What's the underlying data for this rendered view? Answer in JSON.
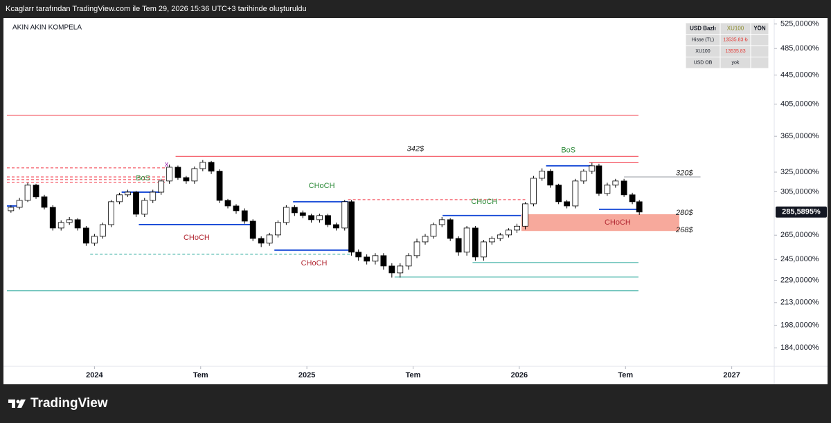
{
  "header": {
    "text": "Kcaglarr tarafından TradingView.com ile Tem 29, 2026 15:36 UTC+3 tarihinde oluşturuldu"
  },
  "chart_data": {
    "type": "candlestick",
    "title": "AKIN AKIN KOMPELA",
    "x": [
      2023.607,
      2023.647,
      2023.686,
      2023.725,
      2023.764,
      2023.804,
      2023.843,
      2023.882,
      2023.921,
      2023.961,
      2024.0,
      2024.039,
      2024.079,
      2024.118,
      2024.157,
      2024.196,
      2024.236,
      2024.275,
      2024.314,
      2024.353,
      2024.393,
      2024.432,
      2024.471,
      2024.51,
      2024.55,
      2024.589,
      2024.628,
      2024.667,
      2024.707,
      2024.746,
      2024.785,
      2024.824,
      2024.864,
      2024.903,
      2024.942,
      2024.981,
      2025.021,
      2025.06,
      2025.099,
      2025.138,
      2025.178,
      2025.21,
      2025.243,
      2025.282,
      2025.322,
      2025.361,
      2025.4,
      2025.439,
      2025.479,
      2025.518,
      2025.557,
      2025.596,
      2025.636,
      2025.675,
      2025.714,
      2025.753,
      2025.793,
      2025.832,
      2025.871,
      2025.91,
      2025.95,
      2025.989,
      2026.028,
      2026.067,
      2026.107,
      2026.146,
      2026.185,
      2026.224,
      2026.264,
      2026.303,
      2026.342,
      2026.375,
      2026.414,
      2026.453,
      2026.493,
      2026.532,
      2026.565
    ],
    "open": [
      286.8,
      290.0,
      296.6,
      311.6,
      300.0,
      290.0,
      271.2,
      276.1,
      278.6,
      271.2,
      258.2,
      264.0,
      274.2,
      295.3,
      302.0,
      304.6,
      283.6,
      296.6,
      304.6,
      315.8,
      330.2,
      319.3,
      315.8,
      328.7,
      335.5,
      326.0,
      296.6,
      291.3,
      286.8,
      277.3,
      262.2,
      258.2,
      265.2,
      276.1,
      290.0,
      284.9,
      282.4,
      278.6,
      282.4,
      274.2,
      271.2,
      295.3,
      250.8,
      246.9,
      243.6,
      248.0,
      239.8,
      234.5,
      239.8,
      248.0,
      259.3,
      264.0,
      274.2,
      278.6,
      262.2,
      250.8,
      271.2,
      246.9,
      259.3,
      262.2,
      265.2,
      269.4,
      272.8,
      293.3,
      318.6,
      326.0,
      311.6,
      295.3,
      291.3,
      315.8,
      326.0,
      331.7,
      303.3,
      311.6,
      315.8,
      302.0,
      295.3
    ],
    "high": [
      292,
      299,
      314,
      313,
      302,
      292,
      278,
      281,
      280,
      273,
      266,
      276,
      297,
      304,
      307,
      306,
      299,
      307,
      318,
      333,
      332,
      321,
      331,
      338,
      337,
      328,
      298,
      293,
      289,
      279,
      264,
      267,
      278,
      292,
      292,
      287,
      284,
      284,
      284,
      276,
      297,
      297,
      253,
      249,
      250,
      250,
      242,
      242,
      250,
      262,
      266,
      276,
      281,
      280,
      264,
      273,
      273,
      261,
      264,
      267,
      271,
      275,
      295,
      321,
      329,
      328,
      313,
      297,
      318,
      328,
      335,
      334,
      314,
      318,
      318,
      304,
      297
    ],
    "low": [
      285,
      288,
      295,
      298,
      288,
      269,
      269,
      274,
      269,
      256,
      256,
      262,
      272,
      293,
      300,
      281,
      281,
      294,
      302,
      313,
      317,
      313,
      313,
      326,
      323,
      294,
      289,
      284,
      275,
      260,
      255,
      256,
      263,
      274,
      282,
      280,
      276,
      276,
      272,
      269,
      269,
      248,
      244,
      241,
      241,
      237,
      231,
      231,
      237,
      246,
      257,
      262,
      272,
      260,
      248,
      248,
      244,
      244,
      257,
      260,
      263,
      267,
      270,
      291,
      316,
      309,
      293,
      289,
      289,
      313,
      323,
      301,
      301,
      309,
      300,
      293,
      283
    ],
    "close": [
      290.0,
      296.6,
      311.6,
      300.0,
      290.0,
      271.2,
      276.1,
      278.6,
      271.2,
      258.2,
      264.0,
      274.2,
      295.3,
      302.0,
      304.6,
      283.6,
      296.6,
      304.6,
      315.8,
      330.2,
      319.3,
      315.8,
      328.7,
      335.5,
      326.0,
      296.6,
      291.3,
      286.8,
      277.3,
      262.2,
      258.2,
      265.2,
      276.1,
      290.0,
      284.9,
      282.4,
      278.6,
      282.4,
      274.2,
      271.2,
      295.3,
      250.8,
      246.9,
      243.6,
      248.0,
      239.8,
      234.5,
      239.8,
      248.0,
      259.3,
      264.0,
      274.2,
      278.6,
      262.2,
      250.8,
      271.2,
      246.9,
      259.3,
      262.2,
      265.2,
      269.4,
      272.8,
      293.3,
      318.6,
      326.0,
      311.6,
      295.3,
      291.3,
      315.8,
      326.0,
      331.7,
      303.3,
      311.6,
      315.8,
      302.0,
      295.3,
      285.6
    ],
    "colors": {
      "up": "#ffffff",
      "down": "#000000",
      "outline": "#000000"
    },
    "xlim": [
      2023.588,
      2027.2
    ],
    "xticks": [
      {
        "value": 2024,
        "label": "2024"
      },
      {
        "value": 2024.5,
        "label": "Tem"
      },
      {
        "value": 2025,
        "label": "2025"
      },
      {
        "value": 2025.5,
        "label": "Tem"
      },
      {
        "value": 2026,
        "label": "2026"
      },
      {
        "value": 2026.5,
        "label": "Tem"
      },
      {
        "value": 2027,
        "label": "2027"
      }
    ],
    "ylim": [
      173.3,
      533
    ],
    "log_scale": true,
    "yticks": [
      {
        "value": 525,
        "label": "525,0000%"
      },
      {
        "value": 485,
        "label": "485,0000%"
      },
      {
        "value": 445,
        "label": "445,0000%"
      },
      {
        "value": 405,
        "label": "405,0000%"
      },
      {
        "value": 365,
        "label": "365,0000%"
      },
      {
        "value": 325,
        "label": "325,0000%"
      },
      {
        "value": 305,
        "label": "305,0000%"
      },
      {
        "value": 265,
        "label": "265,0000%"
      },
      {
        "value": 245,
        "label": "245,0000%"
      },
      {
        "value": 229,
        "label": "229,0000%"
      },
      {
        "value": 213,
        "label": "213,0000%"
      },
      {
        "value": 198,
        "label": "198,0000%"
      },
      {
        "value": 184,
        "label": "184,0000%"
      }
    ],
    "last_price": {
      "value": 285.5895,
      "label": "285,5895%"
    },
    "zone": {
      "x": [
        2026.01,
        2026.753
      ],
      "range": [
        268.6,
        283.6
      ],
      "color": "#f7a99c"
    },
    "levels": [
      {
        "x": [
          2023.588,
          2026.561
        ],
        "y": 390.6,
        "color": "#f23645",
        "style": "solid",
        "width": 1
      },
      {
        "x": [
          2024.382,
          2026.561
        ],
        "y": 342,
        "color": "#f23645",
        "style": "solid",
        "width": 1
      },
      {
        "x": [
          2026.329,
          2026.561
        ],
        "y": 335.1,
        "color": "#f23645",
        "style": "solid",
        "width": 1
      },
      {
        "x": [
          2023.588,
          2024.34
        ],
        "y": 329.5,
        "color": "#f23645",
        "style": "dashed",
        "width": 1
      },
      {
        "x": [
          2023.588,
          2024.34
        ],
        "y": 320.0,
        "color": "#f23645",
        "style": "dashed",
        "width": 1
      },
      {
        "x": [
          2023.588,
          2024.34
        ],
        "y": 317.2,
        "color": "#f23645",
        "style": "dashed",
        "width": 1
      },
      {
        "x": [
          2023.588,
          2024.34
        ],
        "y": 314.4,
        "color": "#f23645",
        "style": "dashed",
        "width": 1
      },
      {
        "x": [
          2025.194,
          2026.028
        ],
        "y": 297.3,
        "color": "#f23645",
        "style": "dashed",
        "width": 1
      },
      {
        "x": [
          2023.588,
          2023.66
        ],
        "y": 291.3,
        "color": "#1e4fd8",
        "style": "solid",
        "width": 2
      },
      {
        "x": [
          2024.128,
          2024.307
        ],
        "y": 304.6,
        "color": "#1e4fd8",
        "style": "solid",
        "width": 2
      },
      {
        "x": [
          2024.209,
          2024.733
        ],
        "y": 274.2,
        "color": "#1e4fd8",
        "style": "solid",
        "width": 2
      },
      {
        "x": [
          2024.935,
          2025.194
        ],
        "y": 295.3,
        "color": "#1e4fd8",
        "style": "solid",
        "width": 2
      },
      {
        "x": [
          2024.847,
          2025.21
        ],
        "y": 252.5,
        "color": "#1e4fd8",
        "style": "solid",
        "width": 2
      },
      {
        "x": [
          2025.639,
          2026.008
        ],
        "y": 282.4,
        "color": "#1e4fd8",
        "style": "solid",
        "width": 2
      },
      {
        "x": [
          2026.126,
          2026.336
        ],
        "y": 331.7,
        "color": "#1e4fd8",
        "style": "solid",
        "width": 2
      },
      {
        "x": [
          2026.375,
          2026.561
        ],
        "y": 288.1,
        "color": "#1e4fd8",
        "style": "solid",
        "width": 2
      },
      {
        "x": [
          2023.98,
          2025.21
        ],
        "y": 249.1,
        "color": "#26a69a",
        "style": "dashed",
        "width": 1
      },
      {
        "x": [
          2025.78,
          2026.561
        ],
        "y": 242.5,
        "color": "#26a69a",
        "style": "solid",
        "width": 1
      },
      {
        "x": [
          2025.413,
          2026.561
        ],
        "y": 231.4,
        "color": "#26a69a",
        "style": "solid",
        "width": 1
      },
      {
        "x": [
          2023.588,
          2026.561
        ],
        "y": 221.3,
        "color": "#26a69a",
        "style": "solid",
        "width": 1
      },
      {
        "x": [
          2026.493,
          2026.853
        ],
        "y": 320,
        "color": "#9598a1",
        "style": "solid",
        "width": 1
      }
    ],
    "annotations": [
      {
        "text": "342$",
        "x": 2025.511,
        "y": 350.2,
        "color": "#222222"
      },
      {
        "text": "BoS",
        "x": 2026.231,
        "y": 348.7,
        "color": "#2e8b3a"
      },
      {
        "text": "320$",
        "x": 2026.777,
        "y": 323.7,
        "color": "#222222"
      },
      {
        "text": "BoS",
        "x": 2024.229,
        "y": 318.6,
        "color": "#2e8b3a"
      },
      {
        "text": "CHoCH",
        "x": 2025.07,
        "y": 310.9,
        "color": "#2e8b3a"
      },
      {
        "text": "CHoCH",
        "x": 2025.835,
        "y": 295.3,
        "color": "#2e8b3a"
      },
      {
        "text": "280$",
        "x": 2026.777,
        "y": 284.9,
        "color": "#222222"
      },
      {
        "text": "CHoCH",
        "x": 2026.463,
        "y": 276.1,
        "color": "#b22833"
      },
      {
        "text": "268$",
        "x": 2026.777,
        "y": 269.4,
        "color": "#222222"
      },
      {
        "text": "CHoCH",
        "x": 2024.481,
        "y": 262.8,
        "color": "#b22833"
      },
      {
        "text": "CHoCH",
        "x": 2025.034,
        "y": 241.9,
        "color": "#b22833"
      },
      {
        "text": "x",
        "x": 2024.34,
        "y": 333.0,
        "color": "#9c27b0"
      }
    ]
  },
  "table": {
    "rows": [
      [
        "USD Bazlı",
        "XU100",
        "YÖN"
      ],
      [
        "Hisse (TL)",
        "13535.83 ₺"
      ],
      [
        "XU100",
        "13535.83"
      ],
      [
        "USD OB",
        "yok"
      ]
    ]
  },
  "footer": {
    "brand": "TradingView"
  }
}
